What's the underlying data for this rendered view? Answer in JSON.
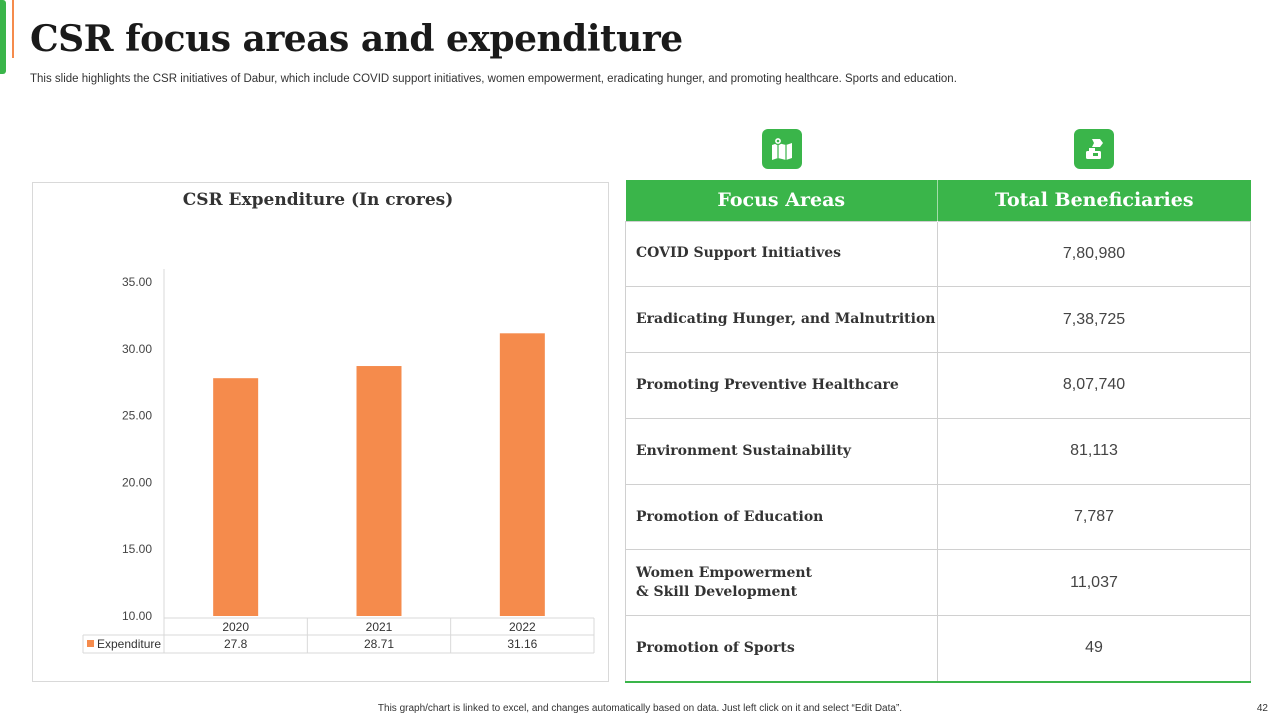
{
  "slide": {
    "title": "CSR focus areas and expenditure",
    "subtitle": "This slide highlights the CSR initiatives of Dabur, which include COVID support initiatives, women empowerment, eradicating hunger, and promoting healthcare. Sports and education.",
    "footer_note": "This graph/chart is linked to excel, and changes automatically based on data. Just left click on it and select “Edit Data”.",
    "page_number": "42"
  },
  "colors": {
    "accent_green": "#3ab54a",
    "accent_orange": "#f58b4c",
    "bar": "#f58b4c"
  },
  "icons": {
    "left": "map-location-icon",
    "right": "donation-hand-icon"
  },
  "chart_data": {
    "type": "bar",
    "title": "CSR Expenditure (In crores)",
    "categories": [
      "2020",
      "2021",
      "2022"
    ],
    "series": [
      {
        "name": "Expenditure",
        "values": [
          27.8,
          28.71,
          31.16
        ]
      }
    ],
    "value_labels": [
      "27.8",
      "28.71",
      "31.16"
    ],
    "y_ticks": [
      "10.00",
      "15.00",
      "20.00",
      "25.00",
      "30.00",
      "35.00"
    ],
    "ylim": [
      10,
      35
    ],
    "xlabel": "",
    "ylabel": "",
    "data_table": true
  },
  "table": {
    "headers": [
      "Focus Areas",
      "Total Beneficiaries"
    ],
    "rows": [
      {
        "area": "COVID Support Initiatives",
        "value": "7,80,980"
      },
      {
        "area": "Eradicating Hunger, and Malnutrition",
        "value": "7,38,725"
      },
      {
        "area": "Promoting Preventive Healthcare",
        "value": "8,07,740"
      },
      {
        "area": "Environment Sustainability",
        "value": "81,113"
      },
      {
        "area": "Promotion of Education",
        "value": "7,787"
      },
      {
        "area": "Women Empowerment & Skill Development",
        "value": "11,037"
      },
      {
        "area": "Promotion of Sports",
        "value": "49"
      }
    ]
  }
}
